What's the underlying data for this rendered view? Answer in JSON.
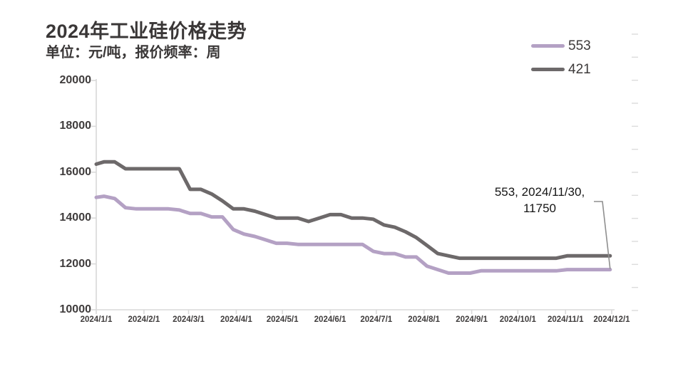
{
  "title": "2024年工业硅价格走势",
  "subtitle": "单位：元/吨，报价频率：周",
  "legend": [
    {
      "label": "553",
      "color": "#b4a1c4"
    },
    {
      "label": "421",
      "color": "#6d696a"
    }
  ],
  "annotation": {
    "line1": "553, 2024/11/30,",
    "line2": "11750"
  },
  "colors": {
    "axis": "#d9d9d9",
    "tick": "#d9d9d9",
    "leader": "#8f8f8f",
    "text": "#3f3c3c"
  },
  "chart_data": {
    "type": "line",
    "title": "2024年工业硅价格走势",
    "unit": "元/吨",
    "frequency": "周",
    "ylim": [
      10000,
      20000
    ],
    "y_ticks": [
      20000,
      18000,
      16000,
      14000,
      12000,
      10000
    ],
    "x_ticks": [
      "2024/1/1",
      "2024/2/1",
      "2024/3/1",
      "2024/4/1",
      "2024/5/1",
      "2024/6/1",
      "2024/7/1",
      "2024/8/1",
      "2024/9/1",
      "2024/10/1",
      "2024/11/1",
      "2024/12/1"
    ],
    "grid": false,
    "legend_position": "top-right",
    "dates": [
      "2024/1/1",
      "2024/1/6",
      "2024/1/13",
      "2024/1/20",
      "2024/1/27",
      "2024/2/3",
      "2024/2/10",
      "2024/2/17",
      "2024/2/24",
      "2024/3/2",
      "2024/3/9",
      "2024/3/16",
      "2024/3/23",
      "2024/3/30",
      "2024/4/6",
      "2024/4/13",
      "2024/4/20",
      "2024/4/27",
      "2024/5/4",
      "2024/5/11",
      "2024/5/18",
      "2024/5/25",
      "2024/6/1",
      "2024/6/8",
      "2024/6/15",
      "2024/6/22",
      "2024/6/29",
      "2024/7/6",
      "2024/7/13",
      "2024/7/20",
      "2024/7/27",
      "2024/8/3",
      "2024/8/10",
      "2024/8/17",
      "2024/8/24",
      "2024/8/31",
      "2024/9/7",
      "2024/9/14",
      "2024/9/21",
      "2024/9/28",
      "2024/10/5",
      "2024/10/12",
      "2024/10/19",
      "2024/10/26",
      "2024/11/2",
      "2024/11/9",
      "2024/11/16",
      "2024/11/23",
      "2024/11/30"
    ],
    "series": [
      {
        "name": "553",
        "color": "#b4a1c4",
        "values": [
          14900,
          14950,
          14850,
          14450,
          14400,
          14400,
          14400,
          14400,
          14350,
          14200,
          14200,
          14050,
          14050,
          13500,
          13300,
          13200,
          13050,
          12900,
          12900,
          12850,
          12850,
          12850,
          12850,
          12850,
          12850,
          12850,
          12550,
          12450,
          12450,
          12300,
          12300,
          11900,
          11750,
          11600,
          11600,
          11600,
          11700,
          11700,
          11700,
          11700,
          11700,
          11700,
          11700,
          11700,
          11750,
          11750,
          11750,
          11750,
          11750
        ]
      },
      {
        "name": "421",
        "color": "#6d696a",
        "values": [
          16350,
          16450,
          16450,
          16150,
          16150,
          16150,
          16150,
          16150,
          16150,
          15250,
          15250,
          15050,
          14750,
          14400,
          14400,
          14300,
          14150,
          14000,
          14000,
          14000,
          13850,
          14000,
          14150,
          14150,
          14000,
          14000,
          13950,
          13700,
          13600,
          13400,
          13150,
          12800,
          12450,
          12350,
          12250,
          12250,
          12250,
          12250,
          12250,
          12250,
          12250,
          12250,
          12250,
          12250,
          12350,
          12350,
          12350,
          12350,
          12350
        ]
      }
    ],
    "annotation": {
      "series": "553",
      "date": "2024/11/30",
      "value": 11750,
      "text": "553, 2024/11/30, 11750"
    }
  }
}
